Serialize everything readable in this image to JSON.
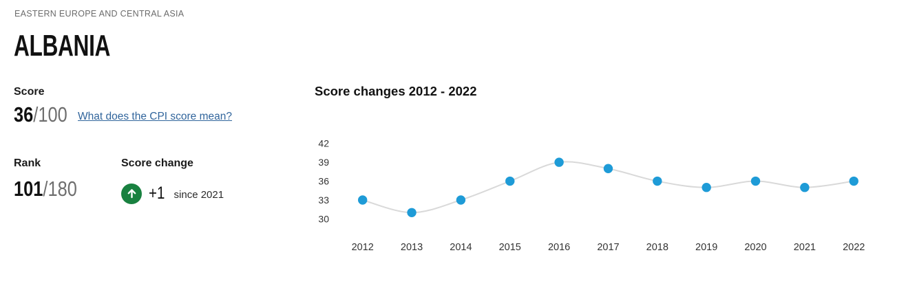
{
  "colors": {
    "accent_blue": "#1E9BD7",
    "trend_line_gray": "#D9D9D9",
    "badge_green": "#198140",
    "link_blue": "#31659C",
    "axis_text": "#333333"
  },
  "header": {
    "region": "EASTERN EUROPE AND CENTRAL ASIA",
    "country": "ALBANIA"
  },
  "score": {
    "label": "Score",
    "value": "36",
    "denominator": "/100",
    "link_text": "What does the CPI score mean?"
  },
  "rank": {
    "label": "Rank",
    "value": "101",
    "denominator": "/180"
  },
  "change": {
    "label": "Score change",
    "delta": "+1",
    "since": "since 2021",
    "icon": "up-arrow-icon"
  },
  "chart_data": {
    "type": "line",
    "title": "Score changes 2012 - 2022",
    "x": [
      2012,
      2013,
      2014,
      2015,
      2016,
      2017,
      2018,
      2019,
      2020,
      2021,
      2022
    ],
    "values": [
      33,
      31,
      33,
      36,
      39,
      38,
      36,
      35,
      36,
      35,
      36
    ],
    "series_name": "CPI score",
    "yticks": [
      30,
      33,
      36,
      39,
      42
    ],
    "ylim": [
      28,
      44
    ],
    "xlabel": "",
    "ylabel": "",
    "grid": false,
    "legend": "none",
    "point_color": "#1E9BD7",
    "line_color": "#D9D9D9",
    "axis_text_color": "#333333"
  }
}
